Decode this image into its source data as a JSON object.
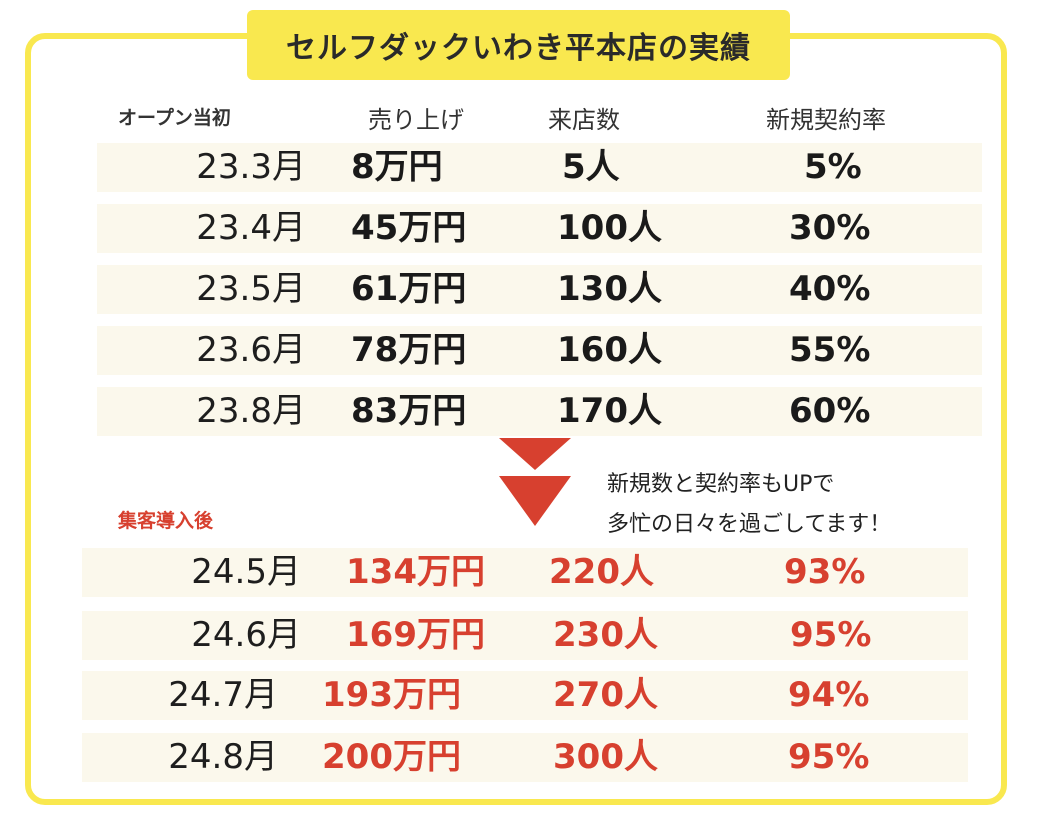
{
  "title": "セルフダックいわき平本店の実績",
  "headers": {
    "opening": "オープン当初",
    "sales": "売り上げ",
    "visitors": "来店数",
    "contract_rate": "新規契約率"
  },
  "before_rows": [
    {
      "month": "23.3月",
      "sales": "8万円",
      "visitors": "5人",
      "rate": "5%"
    },
    {
      "month": "23.4月",
      "sales": "45万円",
      "visitors": "100人",
      "rate": "30%"
    },
    {
      "month": "23.5月",
      "sales": "61万円",
      "visitors": "130人",
      "rate": "40%"
    },
    {
      "month": "23.6月",
      "sales": "78万円",
      "visitors": "160人",
      "rate": "55%"
    },
    {
      "month": "23.8月",
      "sales": "83万円",
      "visitors": "170人",
      "rate": "60%"
    }
  ],
  "note": {
    "line1": "新規数と契約率もUPで",
    "line2": "多忙の日々を過ごしてます！"
  },
  "after_label": "集客導入後",
  "after_rows": [
    {
      "month": "24.5月",
      "sales": "134万円",
      "visitors": "220人",
      "rate": "93%"
    },
    {
      "month": "24.6月",
      "sales": "169万円",
      "visitors": "230人",
      "rate": "95%"
    },
    {
      "month": "24.7月",
      "sales": "193万円",
      "visitors": "270人",
      "rate": "94%"
    },
    {
      "month": "24.8月",
      "sales": "200万円",
      "visitors": "300人",
      "rate": "95%"
    }
  ],
  "colors": {
    "accent_yellow": "#f9e84f",
    "accent_red": "#d7402f",
    "row_bg": "#fbf8ec"
  },
  "icons": [
    "down-arrow-icon"
  ]
}
